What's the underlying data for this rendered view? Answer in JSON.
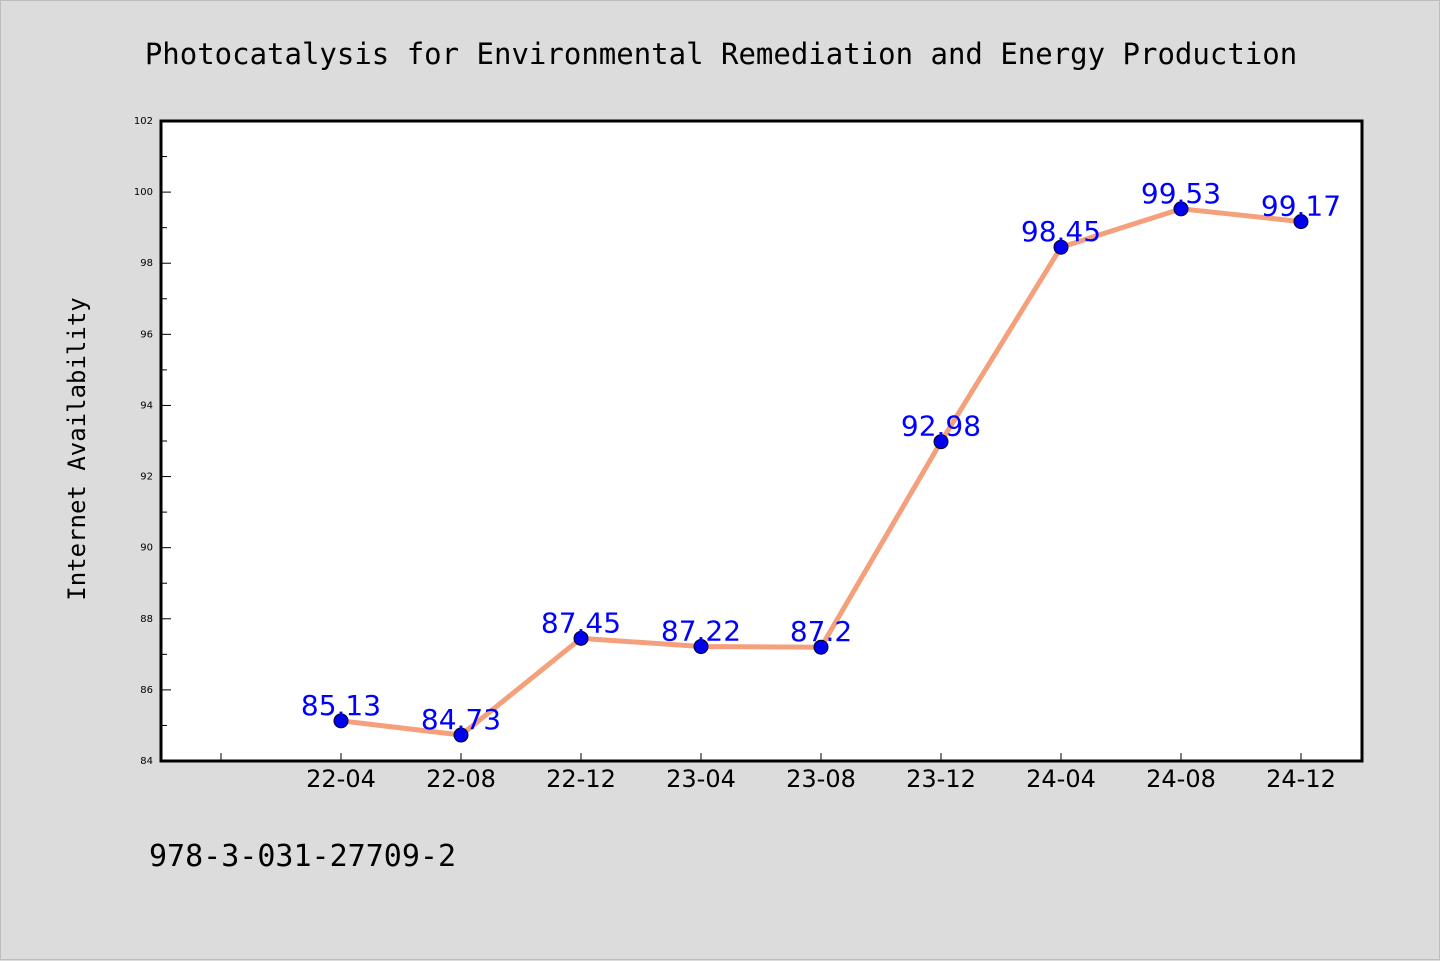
{
  "chart_data": {
    "type": "line",
    "title": "Photocatalysis for Environmental Remediation and Energy Production",
    "ylabel": "Internet Availability",
    "xlabel": "",
    "categories": [
      "22-04",
      "22-08",
      "22-12",
      "23-04",
      "23-08",
      "23-12",
      "24-04",
      "24-08",
      "24-12"
    ],
    "values": [
      85.13,
      84.73,
      87.45,
      87.22,
      87.2,
      92.98,
      98.45,
      99.53,
      99.17
    ],
    "data_labels": [
      "85.13",
      "84.73",
      "87.45",
      "87.22",
      "87.2",
      "92.98",
      "98.45",
      "99.53",
      "99.17"
    ],
    "ylim": [
      84,
      102
    ],
    "yticks": [
      84,
      86,
      88,
      90,
      92,
      94,
      96,
      98,
      100,
      102
    ],
    "grid": false,
    "line_color": "#f4a07c",
    "marker_color": "#0000ee",
    "label_color": "#0000ff"
  },
  "footer": {
    "isbn": "978-3-031-27709-2"
  }
}
